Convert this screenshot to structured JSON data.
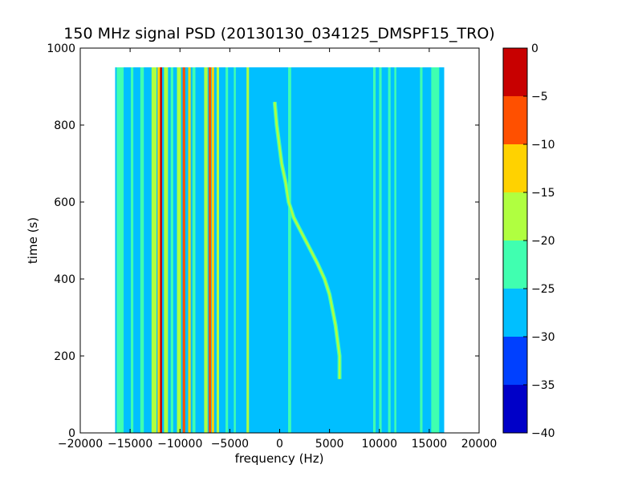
{
  "chart_data": {
    "type": "heatmap",
    "title": "150 MHz signal PSD (20130130_034125_DMSPF15_TRO)",
    "xlabel": "frequency (Hz)",
    "ylabel": "time (s)",
    "xlim": [
      -20000,
      20000
    ],
    "ylim": [
      0,
      1000
    ],
    "x_ticks": [
      -20000,
      -15000,
      -10000,
      -5000,
      0,
      5000,
      10000,
      15000,
      20000
    ],
    "y_ticks": [
      0,
      200,
      400,
      600,
      800,
      1000
    ],
    "data_extent": {
      "freq": [
        -16500,
        16500
      ],
      "time": [
        0,
        950
      ]
    },
    "background_level_db": -27.5,
    "colorbar": {
      "min": -40,
      "max": 0,
      "ticks": [
        0,
        -5,
        -10,
        -15,
        -20,
        -25,
        -30,
        -35,
        -40
      ],
      "levels": [
        {
          "from": -40,
          "to": -35,
          "color": "#0000c8"
        },
        {
          "from": -35,
          "to": -30,
          "color": "#0040ff"
        },
        {
          "from": -30,
          "to": -25,
          "color": "#00bfff"
        },
        {
          "from": -25,
          "to": -20,
          "color": "#40ffb0"
        },
        {
          "from": -20,
          "to": -15,
          "color": "#b0ff40"
        },
        {
          "from": -15,
          "to": -10,
          "color": "#ffd200"
        },
        {
          "from": -10,
          "to": -5,
          "color": "#ff5000"
        },
        {
          "from": -5,
          "to": 0,
          "color": "#c80000"
        }
      ]
    },
    "vertical_lines": [
      {
        "freq": -16000,
        "width_hz": 700,
        "level_db": -22.5
      },
      {
        "freq": -14800,
        "width_hz": 250,
        "level_db": -22.5
      },
      {
        "freq": -13800,
        "width_hz": 350,
        "level_db": -22.5
      },
      {
        "freq": -12600,
        "width_hz": 500,
        "level_db": -17.5
      },
      {
        "freq": -12100,
        "width_hz": 300,
        "level_db": -12.5
      },
      {
        "freq": -11900,
        "width_hz": 200,
        "level_db": -2.5
      },
      {
        "freq": -11400,
        "width_hz": 400,
        "level_db": -17.5
      },
      {
        "freq": -10800,
        "width_hz": 250,
        "level_db": -22.5
      },
      {
        "freq": -10100,
        "width_hz": 400,
        "level_db": -17.5
      },
      {
        "freq": -9600,
        "width_hz": 250,
        "level_db": -7.5
      },
      {
        "freq": -9050,
        "width_hz": 250,
        "level_db": -12.5
      },
      {
        "freq": -8600,
        "width_hz": 300,
        "level_db": -22.5
      },
      {
        "freq": -7400,
        "width_hz": 350,
        "level_db": -17.5
      },
      {
        "freq": -7000,
        "width_hz": 250,
        "level_db": -7.5
      },
      {
        "freq": -6700,
        "width_hz": 250,
        "level_db": -12.5
      },
      {
        "freq": -6200,
        "width_hz": 250,
        "level_db": -17.5
      },
      {
        "freq": -5300,
        "width_hz": 250,
        "level_db": -22.5
      },
      {
        "freq": -4500,
        "width_hz": 200,
        "level_db": -22.5
      },
      {
        "freq": -3200,
        "width_hz": 250,
        "level_db": -17.5
      },
      {
        "freq": 1000,
        "width_hz": 300,
        "level_db": -22.5
      },
      {
        "freq": 9500,
        "width_hz": 250,
        "level_db": -22.5
      },
      {
        "freq": 10100,
        "width_hz": 250,
        "level_db": -22.5
      },
      {
        "freq": 11000,
        "width_hz": 250,
        "level_db": -22.5
      },
      {
        "freq": 11600,
        "width_hz": 200,
        "level_db": -22.5
      },
      {
        "freq": 14200,
        "width_hz": 250,
        "level_db": -22.5
      },
      {
        "freq": 15600,
        "width_hz": 800,
        "level_db": -22.5
      }
    ],
    "doppler_trace": {
      "time": [
        860,
        800,
        760,
        700,
        650,
        600,
        560,
        520,
        480,
        440,
        400,
        360,
        320,
        280,
        240,
        200,
        170,
        140
      ],
      "freq": [
        -500,
        -300,
        -100,
        200,
        600,
        900,
        1400,
        2200,
        3000,
        3800,
        4500,
        5000,
        5300,
        5600,
        5800,
        6000,
        6000,
        6000
      ],
      "level_db": -17.5
    }
  }
}
